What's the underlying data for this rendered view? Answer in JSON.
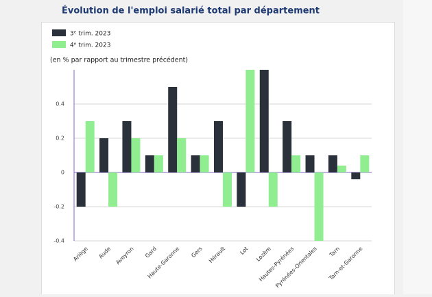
{
  "chart_data": {
    "type": "bar",
    "title": "Évolution de l'emploi salarié total par département",
    "y_label": "(en % par rapport au trimestre précédent)",
    "categories": [
      "Ariège",
      "Aude",
      "Aveyron",
      "Gard",
      "Haute-Garonne",
      "Gers",
      "Hérault",
      "Lot",
      "Lozère",
      "Hautes-Pyrénées",
      "Pyrénées-Orientales",
      "Tarn",
      "Tarn-et-Garonne"
    ],
    "series": [
      {
        "name": "3ᵉ trim. 2023",
        "color": "#2b313b",
        "values": [
          -0.2,
          0.2,
          0.3,
          0.1,
          0.5,
          0.1,
          0.3,
          -0.2,
          0.6,
          0.3,
          0.1,
          0.1,
          -0.04
        ]
      },
      {
        "name": "4ᵉ trim. 2023",
        "color": "#90ee90",
        "values": [
          0.3,
          -0.2,
          0.2,
          0.1,
          0.2,
          0.1,
          -0.2,
          0.6,
          -0.2,
          0.1,
          -0.4,
          0.04,
          0.1
        ]
      }
    ],
    "ylim": [
      -0.4,
      0.6
    ],
    "yticks": [
      -0.4,
      -0.2,
      0,
      0.2,
      0.4
    ],
    "grid": true
  }
}
